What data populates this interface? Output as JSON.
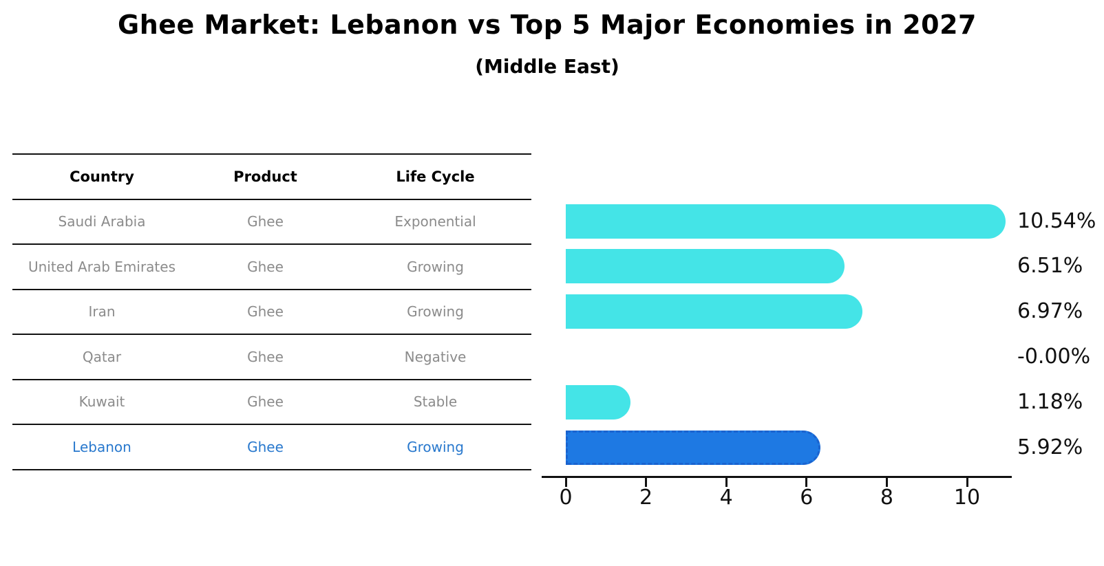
{
  "title": {
    "main": "Ghee Market: Lebanon vs Top 5 Major Economies in 2027",
    "subtitle": "(Middle East)"
  },
  "table": {
    "headers": [
      "Country",
      "Product",
      "Life Cycle"
    ],
    "rows": [
      {
        "country": "Saudi Arabia",
        "product": "Ghee",
        "life_cycle": "Exponential",
        "highlight": false
      },
      {
        "country": "United Arab Emirates",
        "product": "Ghee",
        "life_cycle": "Growing",
        "highlight": false
      },
      {
        "country": "Iran",
        "product": "Ghee",
        "life_cycle": "Growing",
        "highlight": false
      },
      {
        "country": "Qatar",
        "product": "Ghee",
        "life_cycle": "Negative",
        "highlight": false
      },
      {
        "country": "Kuwait",
        "product": "Ghee",
        "life_cycle": "Stable",
        "highlight": false
      },
      {
        "country": "Lebanon",
        "product": "Ghee",
        "life_cycle": "Growing",
        "highlight": true
      }
    ]
  },
  "chart_data": {
    "type": "bar",
    "orientation": "horizontal",
    "title": "Ghee Market: Lebanon vs Top 5 Major Economies in 2027",
    "subtitle": "(Middle East)",
    "categories": [
      "Saudi Arabia",
      "United Arab Emirates",
      "Iran",
      "Qatar",
      "Kuwait",
      "Lebanon"
    ],
    "values": [
      10.54,
      6.51,
      6.97,
      -0.0,
      1.18,
      5.92
    ],
    "value_labels": [
      "10.54%",
      "6.51%",
      "6.97%",
      "-0.00%",
      "1.18%",
      "5.92%"
    ],
    "unit": "percent CAGR",
    "xlim": [
      0,
      11.2
    ],
    "xticks": [
      0,
      2,
      4,
      6,
      8,
      10
    ],
    "highlight_category": "Lebanon",
    "legend": "none",
    "grid": "off",
    "colors": {
      "bar": "#44e4e7",
      "highlight_bar": "#1e79e3",
      "highlight_text": "#2878cd",
      "table_text": "#8b8b8b",
      "axis": "#111111"
    }
  }
}
